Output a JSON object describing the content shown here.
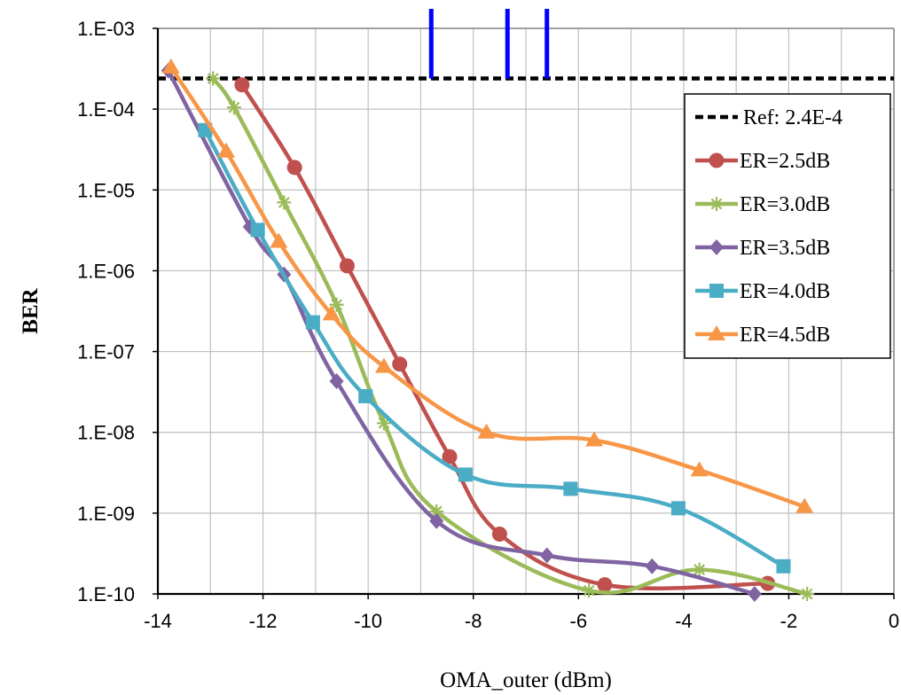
{
  "chart_data": {
    "type": "line",
    "xlabel": "OMA_outer (dBm)",
    "ylabel": "BER",
    "y_scale": "log",
    "xlim": [
      -14,
      0
    ],
    "ylim": [
      1e-10,
      0.001
    ],
    "x_ticks": [
      {
        "value": -14,
        "label": "-14"
      },
      {
        "value": -12,
        "label": "-12"
      },
      {
        "value": -10,
        "label": "-10"
      },
      {
        "value": -8,
        "label": "-8"
      },
      {
        "value": -6,
        "label": "-6"
      },
      {
        "value": -4,
        "label": "-4"
      },
      {
        "value": -2,
        "label": "-2"
      },
      {
        "value": 0,
        "label": "0"
      }
    ],
    "y_ticks": [
      {
        "value": 0.001,
        "label": "1.E-03"
      },
      {
        "value": 0.0001,
        "label": "1.E-04"
      },
      {
        "value": 1e-05,
        "label": "1.E-05"
      },
      {
        "value": 1e-06,
        "label": "1.E-06"
      },
      {
        "value": 1e-07,
        "label": "1.E-07"
      },
      {
        "value": 1e-08,
        "label": "1.E-08"
      },
      {
        "value": 1e-09,
        "label": "1.E-09"
      },
      {
        "value": 1e-10,
        "label": "1.E-10"
      }
    ],
    "grid": true,
    "legend_position": "top-right",
    "reference": {
      "name": "Ref: 2.4E-4",
      "value": 0.00024,
      "color": "#000000"
    },
    "markers_vertical": {
      "color": "#0000ff",
      "x": [
        -8.8,
        -7.35,
        -6.6
      ],
      "from_y": 0.00024,
      "to_y": 0.001
    },
    "series": [
      {
        "name": "ER=2.5dB",
        "color": "#c0504d",
        "marker": "circle",
        "x": [
          -12.4,
          -11.4,
          -10.4,
          -9.4,
          -8.45,
          -7.5,
          -5.5,
          -2.4
        ],
        "y": [
          0.0002,
          1.9e-05,
          1.15e-06,
          7e-08,
          5e-09,
          5.5e-10,
          1.3e-10,
          1.35e-10
        ]
      },
      {
        "name": "ER=3.0dB",
        "color": "#9bbb59",
        "marker": "star",
        "x": [
          -12.95,
          -12.55,
          -11.6,
          -10.6,
          -9.7,
          -8.7,
          -5.8,
          -3.7,
          -1.65
        ],
        "y": [
          0.00024,
          0.000105,
          7e-06,
          3.8e-07,
          1.3e-08,
          1.05e-09,
          1.1e-10,
          2e-10,
          1e-10
        ]
      },
      {
        "name": "ER=3.5dB",
        "color": "#8064a2",
        "marker": "diamond",
        "x": [
          -13.8,
          -12.25,
          -11.6,
          -10.6,
          -8.7,
          -6.6,
          -4.6,
          -2.65
        ],
        "y": [
          0.0003,
          3.5e-06,
          9e-07,
          4.3e-08,
          8e-10,
          3e-10,
          2.2e-10,
          1e-10
        ]
      },
      {
        "name": "ER=4.0dB",
        "color": "#4bacc6",
        "marker": "square",
        "x": [
          -13.1,
          -12.1,
          -11.05,
          -10.05,
          -8.15,
          -6.15,
          -4.1,
          -2.1
        ],
        "y": [
          5.5e-05,
          3.2e-06,
          2.3e-07,
          2.8e-08,
          3e-09,
          2e-09,
          1.15e-09,
          2.2e-10
        ]
      },
      {
        "name": "ER=4.5dB",
        "color": "#f79646",
        "marker": "triangle",
        "x": [
          -13.75,
          -12.7,
          -11.7,
          -10.7,
          -9.7,
          -7.75,
          -5.7,
          -3.7,
          -1.7
        ],
        "y": [
          0.00033,
          3e-05,
          2.3e-06,
          2.9e-07,
          6.5e-08,
          1e-08,
          8e-09,
          3.4e-09,
          1.2e-09
        ]
      }
    ]
  }
}
